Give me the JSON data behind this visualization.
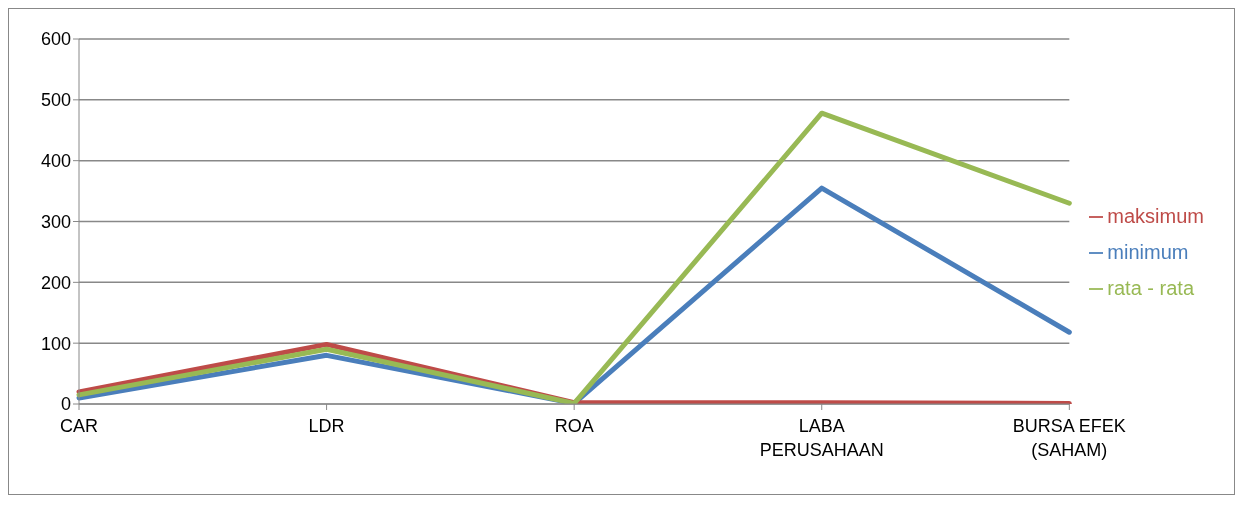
{
  "chart_data": {
    "type": "line",
    "categories": [
      "CAR",
      "LDR",
      "ROA",
      "LABA PERUSAHAAN",
      "BURSA EFEK (SAHAM)"
    ],
    "series": [
      {
        "name": "minimum",
        "color": "#4a7ebb",
        "values": [
          10,
          80,
          1,
          355,
          118
        ]
      },
      {
        "name": "maksimum",
        "color": "#be4b48",
        "values": [
          20,
          98,
          2,
          2,
          1
        ]
      },
      {
        "name": "rata - rata",
        "color": "#98b954",
        "values": [
          15,
          90,
          1,
          478,
          330
        ]
      }
    ],
    "ylim": [
      0,
      600
    ],
    "yticks": [
      0,
      100,
      200,
      300,
      400,
      500,
      600
    ],
    "grid": "y",
    "legend": "right",
    "marker": "none",
    "line_style": "solid"
  }
}
